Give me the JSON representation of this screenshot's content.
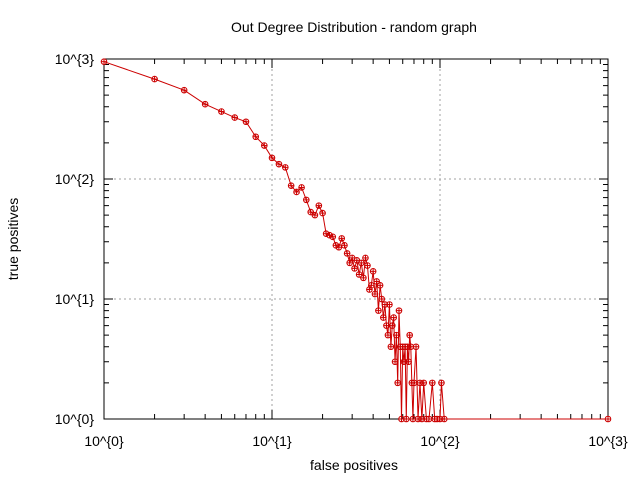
{
  "chart_data": {
    "type": "scatter",
    "title": "Out Degree Distribution - random graph",
    "xlabel": "false positives",
    "ylabel": "true positives",
    "xscale": "log",
    "yscale": "log",
    "xlim": [
      1,
      1000
    ],
    "ylim": [
      1,
      1000
    ],
    "grid": true,
    "legend": "none",
    "x_ticks": [
      {
        "value": 1,
        "label": "10^{0}"
      },
      {
        "value": 10,
        "label": "10^{1}"
      },
      {
        "value": 100,
        "label": "10^{2}"
      },
      {
        "value": 1000,
        "label": "10^{3}"
      }
    ],
    "y_ticks": [
      {
        "value": 1,
        "label": "10^{0}"
      },
      {
        "value": 10,
        "label": "10^{1}"
      },
      {
        "value": 100,
        "label": "10^{2}"
      },
      {
        "value": 1000,
        "label": "10^{3}"
      }
    ],
    "series": [
      {
        "color": "#cc0000",
        "marker": "circle-plus",
        "line": true,
        "points": [
          [
            1,
            950
          ],
          [
            2,
            680
          ],
          [
            3,
            550
          ],
          [
            4,
            420
          ],
          [
            5,
            365
          ],
          [
            6,
            325
          ],
          [
            7,
            300
          ],
          [
            8,
            225
          ],
          [
            9,
            190
          ],
          [
            10,
            150
          ],
          [
            11,
            133
          ],
          [
            12,
            125
          ],
          [
            13,
            88
          ],
          [
            14,
            78
          ],
          [
            15,
            85
          ],
          [
            16,
            67
          ],
          [
            17,
            53
          ],
          [
            18,
            50
          ],
          [
            19,
            60
          ],
          [
            20,
            52
          ],
          [
            21,
            35
          ],
          [
            22,
            34
          ],
          [
            23,
            33
          ],
          [
            24,
            28
          ],
          [
            25,
            27
          ],
          [
            26,
            32
          ],
          [
            27,
            28
          ],
          [
            28,
            24
          ],
          [
            29,
            20
          ],
          [
            30,
            22
          ],
          [
            31,
            18
          ],
          [
            32,
            21
          ],
          [
            33,
            16
          ],
          [
            34,
            20
          ],
          [
            35,
            15
          ],
          [
            36,
            22
          ],
          [
            37,
            19
          ],
          [
            38,
            12
          ],
          [
            39,
            13
          ],
          [
            40,
            17
          ],
          [
            41,
            11
          ],
          [
            42,
            14
          ],
          [
            43,
            8
          ],
          [
            44,
            13
          ],
          [
            45,
            10
          ],
          [
            46,
            7
          ],
          [
            47,
            9
          ],
          [
            48,
            6
          ],
          [
            49,
            5
          ],
          [
            50,
            9
          ],
          [
            51,
            4
          ],
          [
            52,
            6
          ],
          [
            53,
            7
          ],
          [
            54,
            3
          ],
          [
            55,
            5
          ],
          [
            56,
            2
          ],
          [
            57,
            8
          ],
          [
            58,
            4
          ],
          [
            59,
            1
          ],
          [
            60,
            4
          ],
          [
            61,
            3
          ],
          [
            62,
            4
          ],
          [
            63,
            1
          ],
          [
            64,
            4
          ],
          [
            65,
            3
          ],
          [
            66,
            5
          ],
          [
            67,
            4
          ],
          [
            68,
            2
          ],
          [
            69,
            1
          ],
          [
            70,
            2
          ],
          [
            72,
            4
          ],
          [
            74,
            1
          ],
          [
            76,
            2
          ],
          [
            78,
            1
          ],
          [
            80,
            2
          ],
          [
            83,
            1
          ],
          [
            86,
            1
          ],
          [
            90,
            2
          ],
          [
            93,
            1
          ],
          [
            96,
            1
          ],
          [
            100,
            1
          ],
          [
            102,
            2
          ],
          [
            106,
            1
          ],
          [
            1000,
            1
          ]
        ]
      }
    ]
  }
}
